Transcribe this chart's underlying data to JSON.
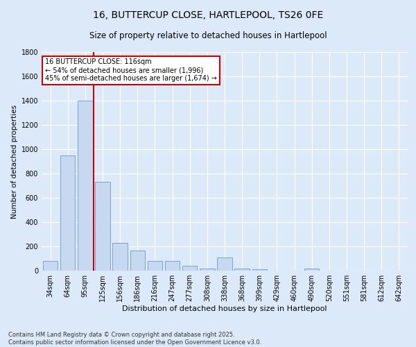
{
  "title": "16, BUTTERCUP CLOSE, HARTLEPOOL, TS26 0FE",
  "subtitle": "Size of property relative to detached houses in Hartlepool",
  "xlabel": "Distribution of detached houses by size in Hartlepool",
  "ylabel": "Number of detached properties",
  "categories": [
    "34sqm",
    "64sqm",
    "95sqm",
    "125sqm",
    "156sqm",
    "186sqm",
    "216sqm",
    "247sqm",
    "277sqm",
    "308sqm",
    "338sqm",
    "368sqm",
    "399sqm",
    "429sqm",
    "460sqm",
    "490sqm",
    "520sqm",
    "551sqm",
    "581sqm",
    "612sqm",
    "642sqm"
  ],
  "values": [
    80,
    950,
    1400,
    730,
    230,
    165,
    80,
    80,
    40,
    20,
    110,
    20,
    10,
    0,
    0,
    20,
    0,
    0,
    0,
    0,
    0
  ],
  "bar_color": "#c6d9f1",
  "bar_edge_color": "#7099c4",
  "vline_color": "#cc0000",
  "annotation_text": "16 BUTTERCUP CLOSE: 116sqm\n← 54% of detached houses are smaller (1,996)\n45% of semi-detached houses are larger (1,674) →",
  "annotation_box_color": "#ffffff",
  "annotation_box_edge": "#cc0000",
  "ylim": [
    0,
    1800
  ],
  "yticks": [
    0,
    200,
    400,
    600,
    800,
    1000,
    1200,
    1400,
    1600,
    1800
  ],
  "background_color": "#dce9f8",
  "plot_bg_color": "#dce9f8",
  "footer": "Contains HM Land Registry data © Crown copyright and database right 2025.\nContains public sector information licensed under the Open Government Licence v3.0.",
  "title_fontsize": 10,
  "subtitle_fontsize": 8.5,
  "xlabel_fontsize": 8,
  "ylabel_fontsize": 7.5,
  "tick_fontsize": 7,
  "annotation_fontsize": 7,
  "footer_fontsize": 6
}
